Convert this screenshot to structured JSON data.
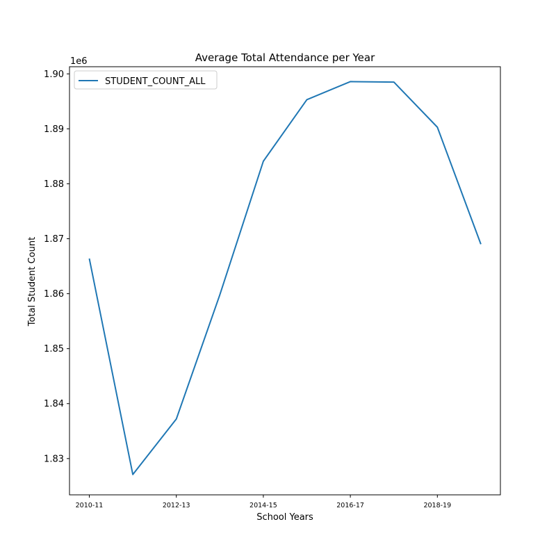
{
  "chart_data": {
    "type": "line",
    "title": "Average Total Attendance per Year",
    "xlabel": "School Years",
    "ylabel": "Total Student Count",
    "y_offset_label": "1e6",
    "x": [
      "2010-11",
      "2011-12",
      "2012-13",
      "2013-14",
      "2014-15",
      "2015-16",
      "2016-17",
      "2017-18",
      "2018-19",
      "2019-20"
    ],
    "x_tick_labels": [
      "2010-11",
      "2012-13",
      "2014-15",
      "2016-17",
      "2018-19"
    ],
    "y_ticks": [
      1.83,
      1.84,
      1.85,
      1.86,
      1.87,
      1.88,
      1.89,
      1.9
    ],
    "y_tick_labels": [
      "1.83",
      "1.84",
      "1.85",
      "1.86",
      "1.87",
      "1.88",
      "1.89",
      "1.90"
    ],
    "ylim": [
      1.8234,
      1.9013
    ],
    "series": [
      {
        "name": "STUDENT_COUNT_ALL",
        "color": "#1f77b4",
        "values": [
          1.8664,
          1.8271,
          1.8372,
          1.8598,
          1.8841,
          1.8953,
          1.8986,
          1.8985,
          1.8903,
          1.869
        ]
      }
    ],
    "legend": {
      "position": "upper-left"
    },
    "grid": false
  }
}
